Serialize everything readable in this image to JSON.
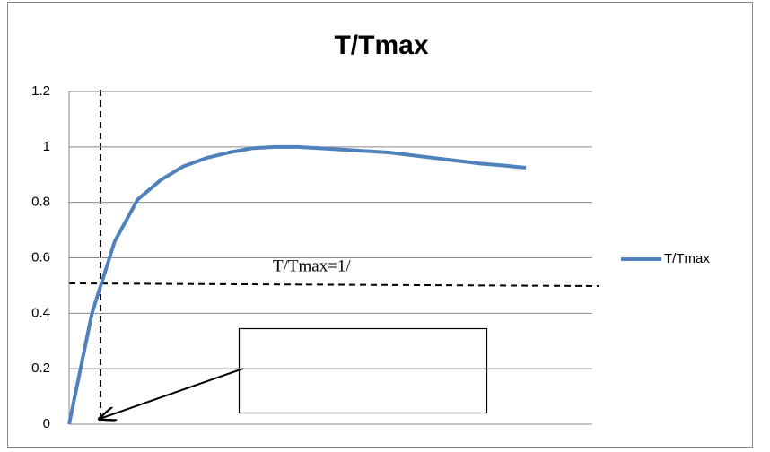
{
  "chart_data": {
    "type": "line",
    "title": "T/Tmax",
    "x": [
      0,
      1,
      2,
      3,
      4,
      5,
      6,
      7,
      8,
      9,
      10,
      11,
      12,
      13,
      14,
      15,
      16,
      17,
      18,
      19,
      20
    ],
    "series": [
      {
        "name": "T/Tmax",
        "color": "#4f81bd",
        "values": [
          0,
          0.4,
          0.66,
          0.81,
          0.88,
          0.93,
          0.96,
          0.98,
          0.995,
          1.0,
          1.0,
          0.995,
          0.99,
          0.985,
          0.98,
          0.97,
          0.96,
          0.95,
          0.94,
          0.933,
          0.925
        ]
      }
    ],
    "xlim": [
      0,
      22.9
    ],
    "ylim": [
      0,
      1.2
    ],
    "yticks": [
      0,
      {
        "value": 0.2,
        "label": "0.2"
      },
      {
        "value": 0.4,
        "label": "0.4"
      },
      {
        "value": 0.6,
        "label": "0.6"
      },
      {
        "value": 0.8,
        "label": "0.8"
      },
      1,
      {
        "value": 1.2,
        "label": "1.2"
      }
    ],
    "grid": true,
    "legend": "right",
    "annotation": "T/Tmax=1/"
  }
}
